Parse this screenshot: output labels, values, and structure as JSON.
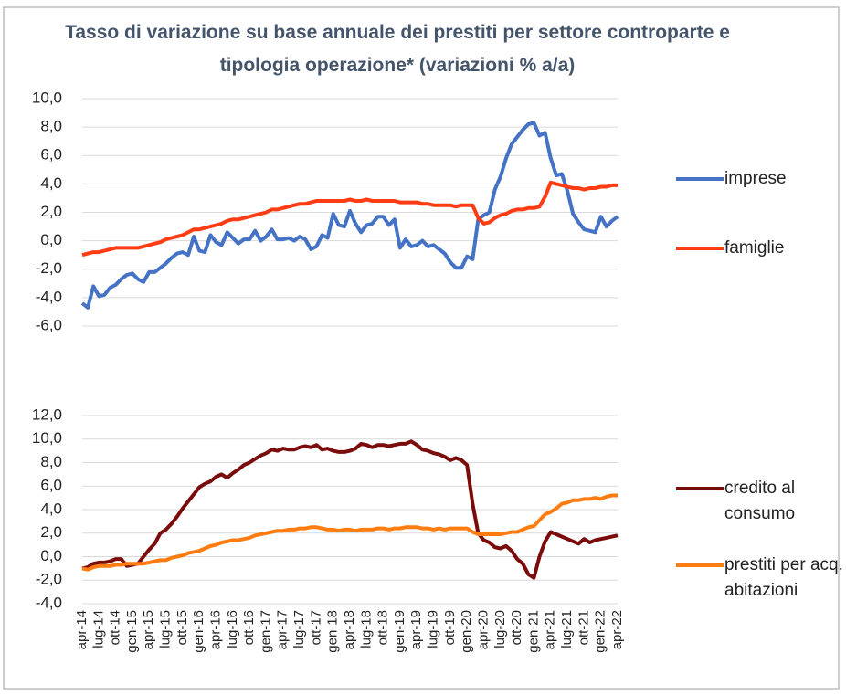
{
  "chart_data": [
    {
      "type": "line",
      "title": "Tasso di variazione su base annuale dei prestiti per settore controparte e tipologia operazione* (variazioni % a/a)",
      "ylim": [
        -6,
        10
      ],
      "yticks": [
        {
          "value": -6,
          "label": "-6,0"
        },
        {
          "value": -4,
          "label": "-4,0"
        },
        {
          "value": -2,
          "label": "-2,0"
        },
        {
          "value": 0,
          "label": "0,0"
        },
        {
          "value": 2,
          "label": "2,0"
        },
        {
          "value": 4,
          "label": "4,0"
        },
        {
          "value": 6,
          "label": "6,0"
        },
        {
          "value": 8,
          "label": "8,0"
        },
        {
          "value": 10,
          "label": "10,0"
        }
      ],
      "grid": true,
      "series": [
        {
          "name": "imprese",
          "color": "#4472c4",
          "values": [
            -4.4,
            -4.7,
            -3.2,
            -3.9,
            -3.8,
            -3.3,
            -3.1,
            -2.7,
            -2.4,
            -2.3,
            -2.7,
            -2.9,
            -2.2,
            -2.2,
            -1.9,
            -1.6,
            -1.2,
            -0.9,
            -0.8,
            -1.0,
            0.3,
            -0.7,
            -0.8,
            0.4,
            -0.1,
            -0.3,
            0.6,
            0.2,
            -0.2,
            0.1,
            0.1,
            0.7,
            0.0,
            0.3,
            0.8,
            0.1,
            0.1,
            0.2,
            0.0,
            0.3,
            0.1,
            -0.6,
            -0.4,
            0.4,
            0.2,
            1.9,
            1.1,
            1.0,
            2.1,
            1.2,
            0.6,
            1.1,
            1.2,
            1.7,
            1.7,
            1.1,
            1.5,
            -0.5,
            0.1,
            -0.4,
            -0.3,
            0.0,
            -0.4,
            -0.3,
            -0.6,
            -0.9,
            -1.5,
            -1.9,
            -1.9,
            -1.1,
            -1.3,
            1.5,
            1.8,
            2.0,
            3.6,
            4.5,
            5.8,
            6.8,
            7.3,
            7.8,
            8.2,
            8.3,
            7.4,
            7.6,
            5.8,
            4.6,
            4.7,
            3.5,
            1.9,
            1.3,
            0.8,
            0.7,
            0.6,
            1.7,
            1.0,
            1.4,
            1.7
          ]
        },
        {
          "name": "famiglie",
          "color": "#ff3c14",
          "values": [
            -1.0,
            -0.9,
            -0.8,
            -0.8,
            -0.7,
            -0.6,
            -0.5,
            -0.5,
            -0.5,
            -0.5,
            -0.5,
            -0.4,
            -0.3,
            -0.2,
            -0.1,
            0.1,
            0.2,
            0.3,
            0.4,
            0.6,
            0.8,
            0.8,
            0.9,
            1.0,
            1.1,
            1.2,
            1.4,
            1.5,
            1.5,
            1.6,
            1.7,
            1.8,
            1.9,
            2.0,
            2.2,
            2.2,
            2.3,
            2.4,
            2.5,
            2.6,
            2.6,
            2.7,
            2.8,
            2.8,
            2.8,
            2.8,
            2.8,
            2.8,
            2.9,
            2.8,
            2.8,
            2.9,
            2.8,
            2.8,
            2.8,
            2.8,
            2.8,
            2.7,
            2.7,
            2.7,
            2.7,
            2.6,
            2.6,
            2.5,
            2.5,
            2.5,
            2.5,
            2.4,
            2.5,
            2.5,
            2.5,
            1.6,
            1.2,
            1.3,
            1.6,
            1.8,
            1.9,
            2.1,
            2.2,
            2.2,
            2.3,
            2.3,
            2.4,
            3.1,
            4.1,
            4.0,
            3.9,
            3.8,
            3.7,
            3.7,
            3.6,
            3.7,
            3.7,
            3.8,
            3.8,
            3.9,
            3.9
          ]
        }
      ]
    },
    {
      "type": "line",
      "categories": [
        "apr-14",
        null,
        null,
        "lug-14",
        null,
        null,
        "ott-14",
        null,
        null,
        "gen-15",
        null,
        null,
        "apr-15",
        null,
        null,
        "lug-15",
        null,
        null,
        "ott-15",
        null,
        null,
        "gen-16",
        null,
        null,
        "apr-16",
        null,
        null,
        "lug-16",
        null,
        null,
        "ott-16",
        null,
        null,
        "gen-17",
        null,
        null,
        "apr-17",
        null,
        null,
        "lug-17",
        null,
        null,
        "ott-17",
        null,
        null,
        "gen-18",
        null,
        null,
        "apr-18",
        null,
        null,
        "lug-18",
        null,
        null,
        "ott-18",
        null,
        null,
        "gen-19",
        null,
        null,
        "apr-19",
        null,
        null,
        "lug-19",
        null,
        null,
        "ott-19",
        null,
        null,
        "gen-20",
        null,
        null,
        "apr-20",
        null,
        null,
        "lug-20",
        null,
        null,
        "ott-20",
        null,
        null,
        "gen-21",
        null,
        null,
        "apr-21",
        null,
        null,
        "lug-21",
        null,
        null,
        "ott-21",
        null,
        null,
        "gen-22",
        null,
        null,
        "apr-22"
      ],
      "ylim": [
        -4,
        12
      ],
      "yticks": [
        {
          "value": -4,
          "label": "-4,0"
        },
        {
          "value": -2,
          "label": "-2,0"
        },
        {
          "value": 0,
          "label": "0,0"
        },
        {
          "value": 2,
          "label": "2,0"
        },
        {
          "value": 4,
          "label": "4,0"
        },
        {
          "value": 6,
          "label": "6,0"
        },
        {
          "value": 8,
          "label": "8,0"
        },
        {
          "value": 10,
          "label": "10,0"
        },
        {
          "value": 12,
          "label": "12,0"
        }
      ],
      "grid": true,
      "series": [
        {
          "name": "credito al consumo",
          "color": "#7b0c0c",
          "values": [
            -1.0,
            -0.9,
            -0.6,
            -0.5,
            -0.5,
            -0.4,
            -0.2,
            -0.2,
            -0.8,
            -0.7,
            -0.6,
            0.0,
            0.6,
            1.1,
            2.0,
            2.3,
            2.8,
            3.4,
            4.1,
            4.7,
            5.3,
            5.9,
            6.2,
            6.4,
            6.8,
            7.0,
            6.7,
            7.1,
            7.4,
            7.8,
            8.0,
            8.3,
            8.6,
            8.8,
            9.1,
            9.0,
            9.2,
            9.1,
            9.1,
            9.3,
            9.4,
            9.3,
            9.5,
            9.1,
            9.2,
            9.0,
            8.9,
            8.9,
            9.0,
            9.2,
            9.6,
            9.5,
            9.3,
            9.5,
            9.5,
            9.4,
            9.5,
            9.6,
            9.6,
            9.8,
            9.5,
            9.1,
            9.0,
            8.8,
            8.7,
            8.5,
            8.2,
            8.4,
            8.2,
            7.8,
            4.5,
            2.0,
            1.4,
            1.2,
            0.8,
            0.7,
            0.9,
            0.5,
            -0.2,
            -0.6,
            -1.5,
            -1.8,
            0.0,
            1.3,
            2.1,
            1.9,
            1.7,
            1.5,
            1.3,
            1.1,
            1.5,
            1.2,
            1.4,
            1.5,
            1.6,
            1.7,
            1.8
          ]
        },
        {
          "name": "prestiti per acq. abitazioni",
          "color": "#ff7c10",
          "values": [
            -1.0,
            -1.1,
            -0.9,
            -0.8,
            -0.8,
            -0.8,
            -0.7,
            -0.7,
            -0.6,
            -0.6,
            -0.6,
            -0.6,
            -0.5,
            -0.4,
            -0.3,
            -0.3,
            -0.1,
            0.0,
            0.1,
            0.3,
            0.4,
            0.5,
            0.7,
            0.9,
            1.0,
            1.2,
            1.3,
            1.4,
            1.4,
            1.5,
            1.6,
            1.8,
            1.9,
            2.0,
            2.1,
            2.2,
            2.2,
            2.3,
            2.3,
            2.4,
            2.4,
            2.5,
            2.5,
            2.4,
            2.3,
            2.3,
            2.2,
            2.3,
            2.3,
            2.2,
            2.3,
            2.3,
            2.3,
            2.4,
            2.4,
            2.3,
            2.4,
            2.4,
            2.5,
            2.5,
            2.5,
            2.4,
            2.4,
            2.3,
            2.4,
            2.3,
            2.4,
            2.4,
            2.4,
            2.4,
            2.1,
            1.9,
            1.9,
            1.9,
            1.9,
            1.9,
            2.0,
            2.1,
            2.1,
            2.3,
            2.5,
            2.6,
            3.1,
            3.6,
            3.8,
            4.1,
            4.5,
            4.6,
            4.8,
            4.8,
            4.9,
            4.9,
            5.0,
            4.9,
            5.1,
            5.2,
            5.2
          ]
        }
      ]
    }
  ]
}
